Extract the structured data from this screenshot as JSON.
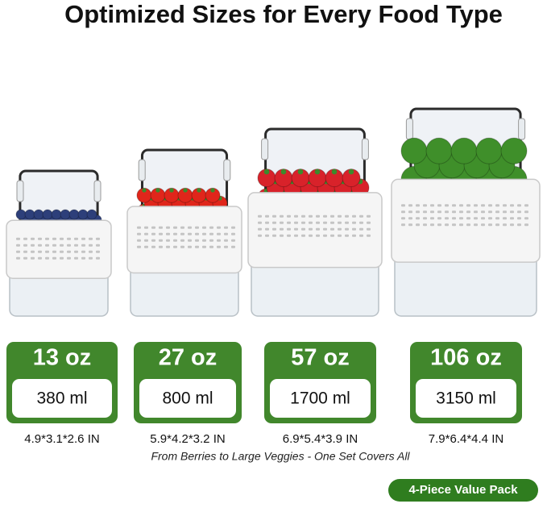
{
  "title": "Optimized Sizes for Every Food Type",
  "products": [
    {
      "oz": "13 oz",
      "ml": "380 ml",
      "dimensions": "4.9*3.1*2.6 IN"
    },
    {
      "oz": "27 oz",
      "ml": "800 ml",
      "dimensions": "5.9*4.2*3.2 IN"
    },
    {
      "oz": "57 oz",
      "ml": "1700 ml",
      "dimensions": "6.9*5.4*3.9 IN"
    },
    {
      "oz": "106 oz",
      "ml": "3150 ml",
      "dimensions": "7.9*6.4*4.4 IN"
    }
  ],
  "tagline": "From Berries to Large Veggies - One Set Covers All",
  "badge": "4-Piece Value Pack"
}
